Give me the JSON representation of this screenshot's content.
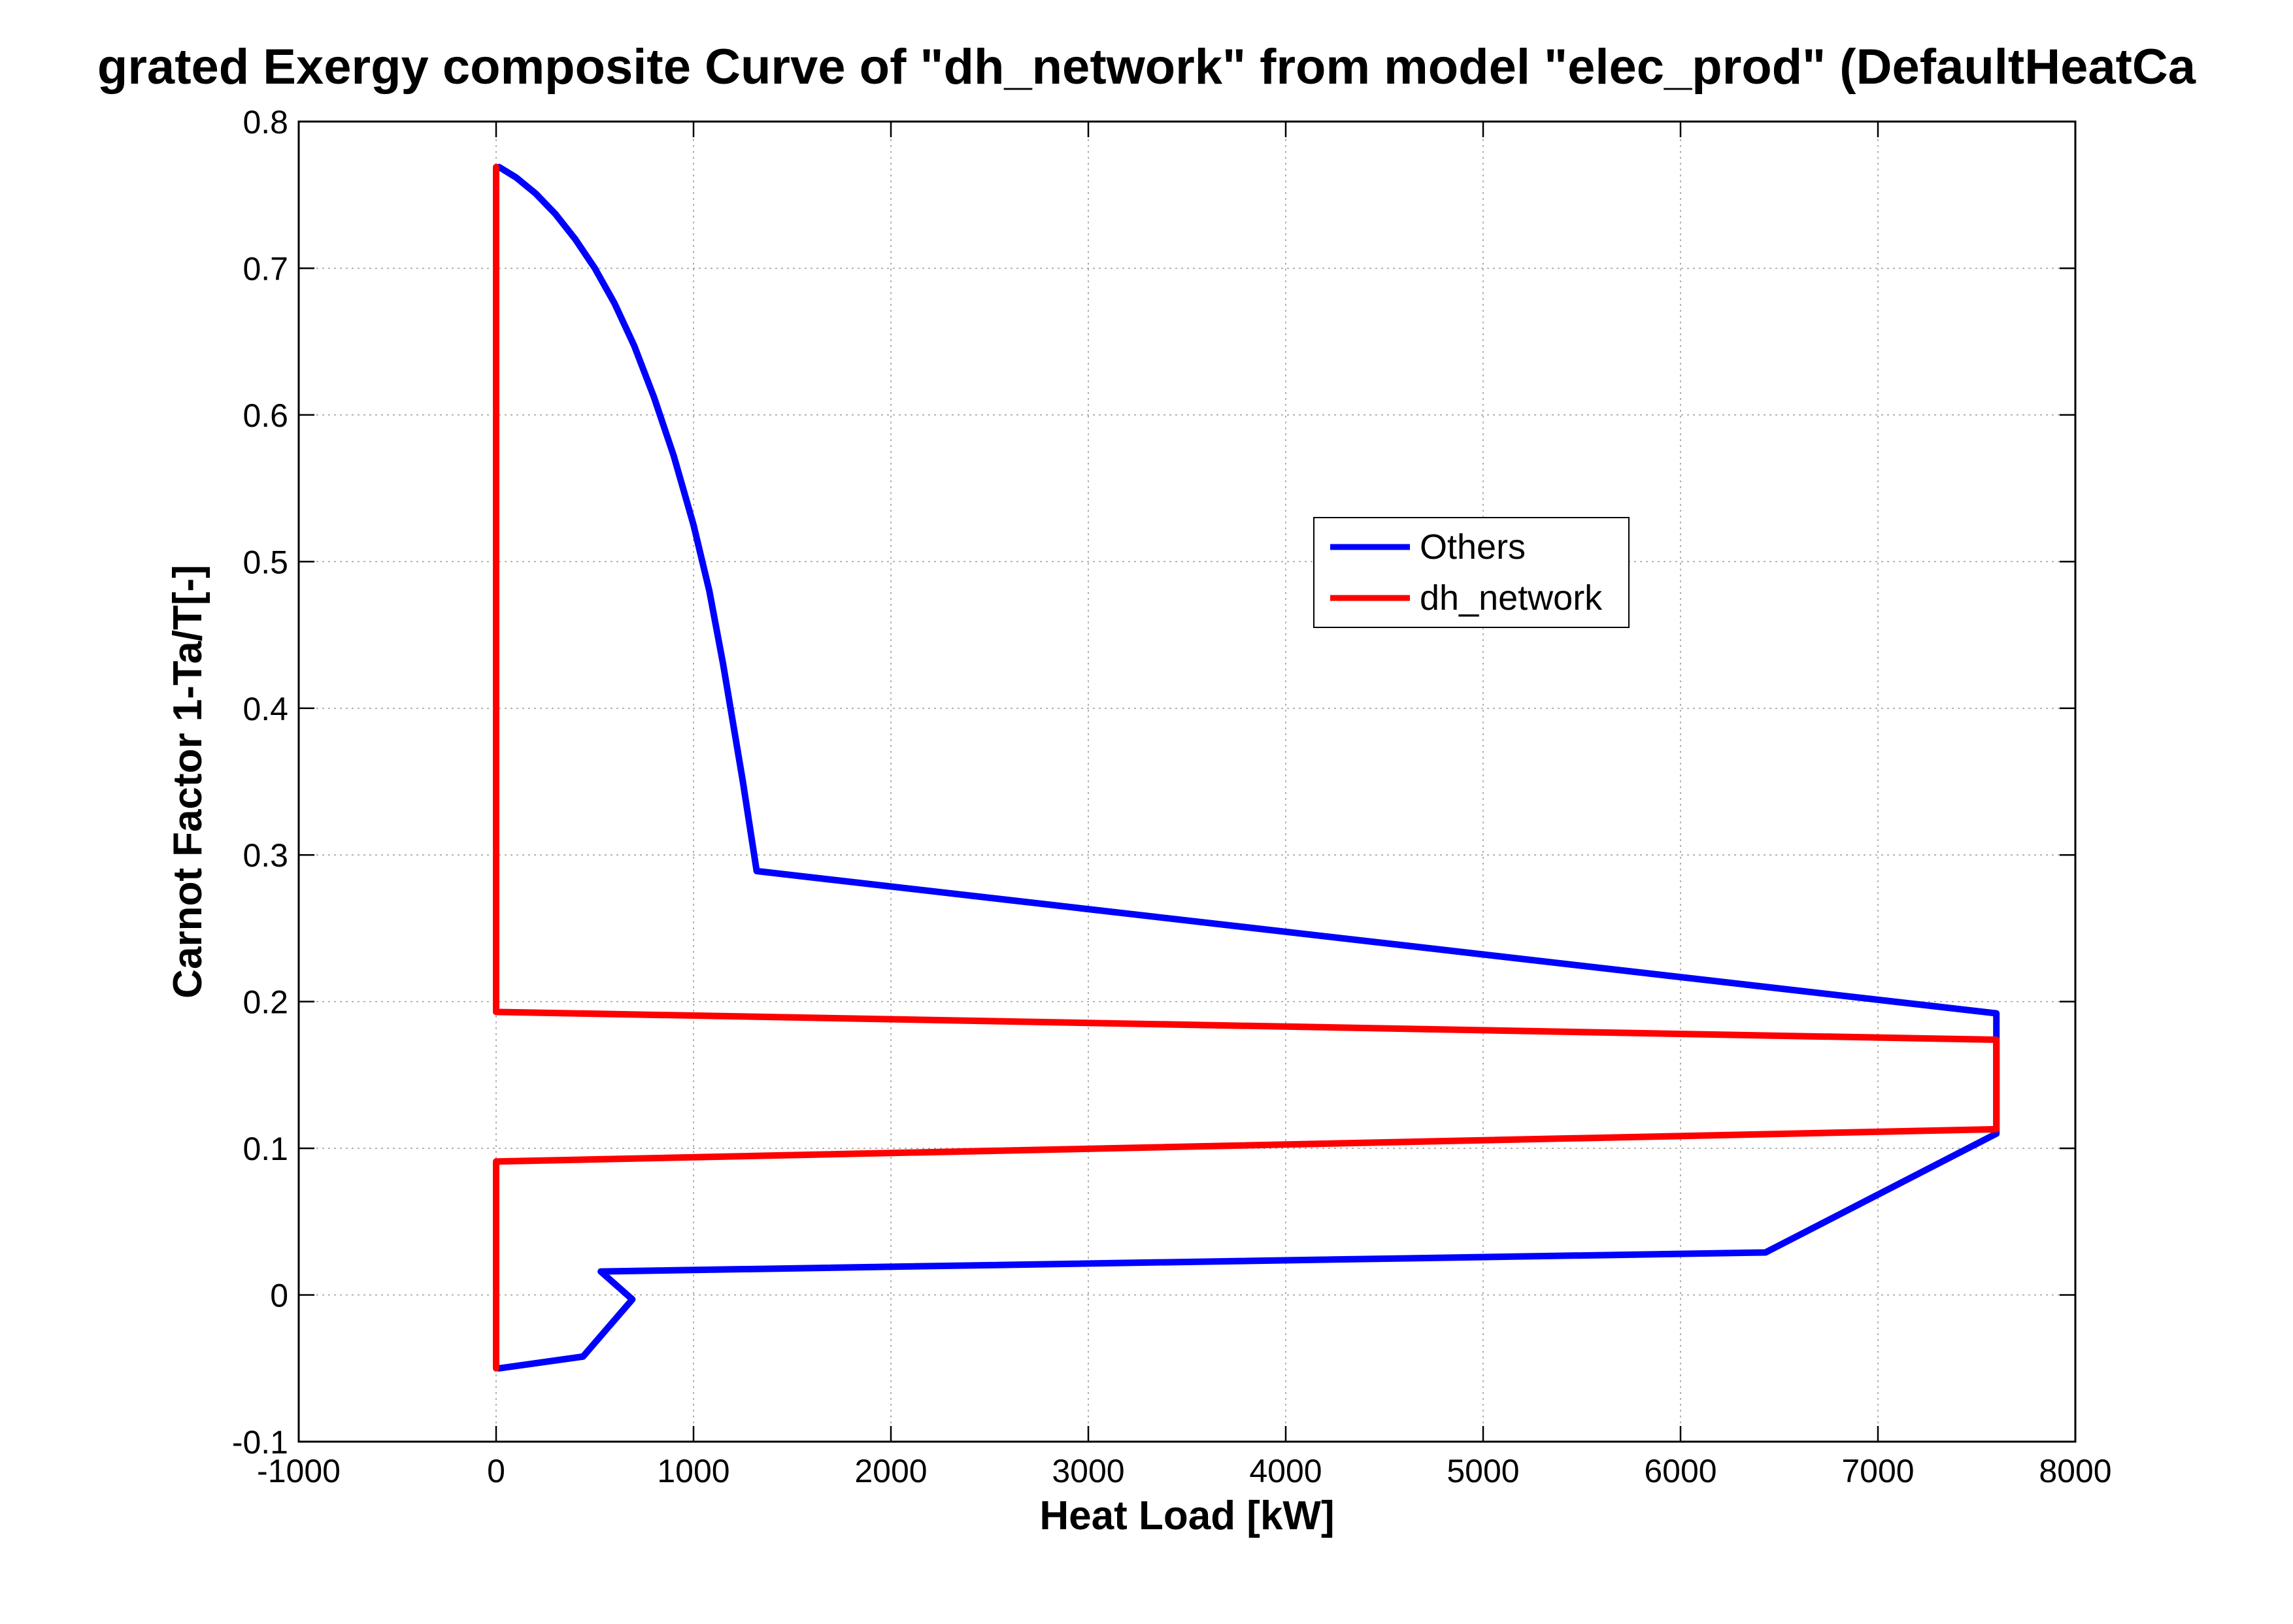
{
  "chart_data": {
    "type": "line",
    "title": "grated Exergy composite Curve of \"dh_network\" from model \"elec_prod\" (DefaultHeatCa",
    "xlabel": "Heat Load [kW]",
    "ylabel": "Carnot Factor 1-Ta/T[-]",
    "xlim": [
      -1000,
      8000
    ],
    "ylim": [
      -0.1,
      0.8
    ],
    "xticks": [
      -1000,
      0,
      1000,
      2000,
      3000,
      4000,
      5000,
      6000,
      7000,
      8000
    ],
    "xtick_labels": [
      "-1000",
      "0",
      "1000",
      "2000",
      "3000",
      "4000",
      "5000",
      "6000",
      "7000",
      "8000"
    ],
    "yticks": [
      -0.1,
      0,
      0.1,
      0.2,
      0.3,
      0.4,
      0.5,
      0.6,
      0.7,
      0.8
    ],
    "ytick_labels": [
      "-0.1",
      "0",
      "0.1",
      "0.2",
      "0.3",
      "0.4",
      "0.5",
      "0.6",
      "0.7",
      "0.8"
    ],
    "grid": true,
    "legend_position": "upper-right-center",
    "series": [
      {
        "name": "Others",
        "color": "#0000ff",
        "points": [
          [
            15,
            0.769
          ],
          [
            100,
            0.762
          ],
          [
            200,
            0.751
          ],
          [
            300,
            0.737
          ],
          [
            400,
            0.72
          ],
          [
            500,
            0.7
          ],
          [
            600,
            0.676
          ],
          [
            700,
            0.647
          ],
          [
            800,
            0.612
          ],
          [
            900,
            0.572
          ],
          [
            1000,
            0.525
          ],
          [
            1080,
            0.48
          ],
          [
            1150,
            0.43
          ],
          [
            1200,
            0.39
          ],
          [
            1250,
            0.35
          ],
          [
            1290,
            0.315
          ],
          [
            1320,
            0.289
          ],
          [
            7600,
            0.192
          ],
          [
            7600,
            0.174
          ],
          [
            7600,
            0.112
          ],
          [
            7600,
            0.11
          ],
          [
            6430,
            0.029
          ],
          [
            530,
            0.016
          ],
          [
            690,
            -0.003
          ],
          [
            440,
            -0.042
          ],
          [
            15,
            -0.05
          ]
        ]
      },
      {
        "name": "dh_network",
        "color": "#ff0000",
        "points": [
          [
            0,
            0.769
          ],
          [
            0,
            0.193
          ],
          [
            7600,
            0.174
          ],
          [
            7600,
            0.113
          ],
          [
            0,
            0.091
          ],
          [
            0,
            -0.05
          ]
        ]
      }
    ]
  }
}
